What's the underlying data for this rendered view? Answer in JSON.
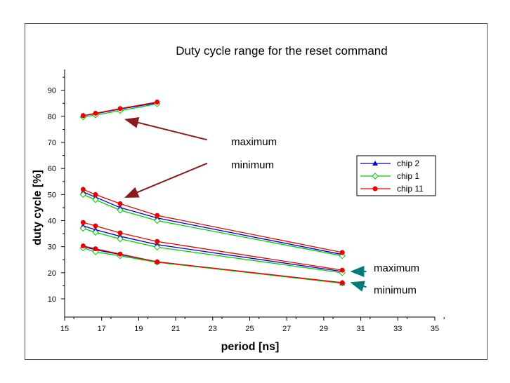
{
  "chart_data": {
    "type": "line",
    "title": "Duty cycle range for the reset command",
    "xlabel": "period [ns]",
    "ylabel": "duty cycle [%]",
    "xlim": [
      15,
      35
    ],
    "ylim": [
      3,
      98
    ],
    "xticks": [
      15,
      17,
      19,
      21,
      23,
      25,
      27,
      29,
      31,
      33,
      35
    ],
    "yticks": [
      10,
      20,
      30,
      40,
      50,
      60,
      70,
      80,
      90
    ],
    "grid": false,
    "legend_position": "right",
    "series": [
      {
        "name": "chip 2",
        "color": "#0000cc",
        "marker": "triangle",
        "groups": [
          [
            [
              16,
              80.3
            ],
            [
              16.67,
              81.0
            ],
            [
              18,
              82.8
            ],
            [
              20,
              85.2
            ]
          ],
          [
            [
              16,
              51.0
            ],
            [
              16.67,
              49.0
            ],
            [
              18,
              45.0
            ],
            [
              20,
              41.0
            ],
            [
              30,
              27.0
            ]
          ],
          [
            [
              16,
              38.0
            ],
            [
              16.67,
              36.5
            ],
            [
              18,
              34.0
            ],
            [
              20,
              30.8
            ],
            [
              30,
              20.5
            ]
          ],
          [
            [
              16,
              30.0
            ],
            [
              16.67,
              28.8
            ],
            [
              18,
              27.0
            ],
            [
              20,
              24.2
            ],
            [
              30,
              16.0
            ]
          ]
        ]
      },
      {
        "name": "chip 1",
        "color": "#00cc00",
        "marker": "diamond",
        "groups": [
          [
            [
              16,
              79.8
            ],
            [
              16.67,
              80.5
            ],
            [
              18,
              82.2
            ],
            [
              20,
              84.8
            ]
          ],
          [
            [
              16,
              50.0
            ],
            [
              16.67,
              48.0
            ],
            [
              18,
              44.0
            ],
            [
              20,
              40.0
            ],
            [
              30,
              26.5
            ]
          ],
          [
            [
              16,
              37.0
            ],
            [
              16.67,
              35.5
            ],
            [
              18,
              33.0
            ],
            [
              20,
              29.8
            ],
            [
              30,
              20.0
            ]
          ],
          [
            [
              16,
              29.5
            ],
            [
              16.67,
              28.0
            ],
            [
              18,
              26.5
            ],
            [
              20,
              24.0
            ],
            [
              30,
              16.0
            ]
          ]
        ]
      },
      {
        "name": "chip 11",
        "color": "#ee0000",
        "marker": "circle",
        "groups": [
          [
            [
              16,
              80.3
            ],
            [
              16.67,
              81.2
            ],
            [
              18,
              83.0
            ],
            [
              20,
              85.5
            ]
          ],
          [
            [
              16,
              52.0
            ],
            [
              16.67,
              50.0
            ],
            [
              18,
              46.5
            ],
            [
              20,
              42.0
            ],
            [
              30,
              27.8
            ]
          ],
          [
            [
              16,
              39.3
            ],
            [
              16.67,
              38.0
            ],
            [
              18,
              35.3
            ],
            [
              20,
              32.0
            ],
            [
              30,
              21.0
            ]
          ],
          [
            [
              16,
              30.3
            ],
            [
              16.67,
              29.2
            ],
            [
              18,
              27.2
            ],
            [
              20,
              24.2
            ],
            [
              30,
              16.2
            ]
          ]
        ]
      }
    ],
    "annotations": [
      {
        "text": "maximum",
        "at": [
          24,
          69
        ],
        "arrow_from": [
          22.7,
          71
        ],
        "arrow_to": [
          18.3,
          78.8
        ],
        "arrow_color": "#8b1a1a"
      },
      {
        "text": "minimum",
        "at": [
          24,
          60
        ],
        "arrow_from": [
          22.7,
          62
        ],
        "arrow_to": [
          18.3,
          49
        ],
        "arrow_color": "#8b1a1a"
      },
      {
        "text": "maximum",
        "at": [
          31.7,
          20.5
        ],
        "arrow_from": [
          31.3,
          20.5
        ],
        "arrow_to": [
          30.5,
          20.5
        ],
        "arrow_color": "#007a7a"
      },
      {
        "text": "minimum",
        "at": [
          31.7,
          12
        ],
        "arrow_from": [
          31.3,
          14.5
        ],
        "arrow_to": [
          30.5,
          16.2
        ],
        "arrow_color": "#007a7a"
      }
    ]
  }
}
